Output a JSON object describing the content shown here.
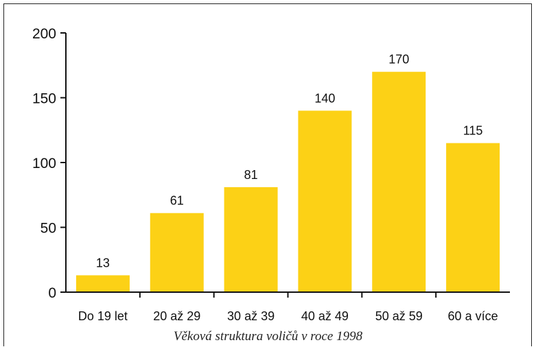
{
  "chart_data": {
    "type": "bar",
    "categories": [
      "Do 19 let",
      "20 až 29",
      "30 až 39",
      "40 až 49",
      "50 až 59",
      "60 a více"
    ],
    "values": [
      13,
      61,
      81,
      140,
      170,
      115
    ],
    "data_labels": [
      "13",
      "61",
      "81",
      "140",
      "170",
      "115"
    ],
    "title": "Věková struktura voličů v roce 1998",
    "xlabel": "",
    "ylabel": "",
    "ylim": [
      0,
      200
    ],
    "yticks": [
      0,
      50,
      100,
      150,
      200
    ],
    "grid": false,
    "bar_color": "#FCD116"
  }
}
